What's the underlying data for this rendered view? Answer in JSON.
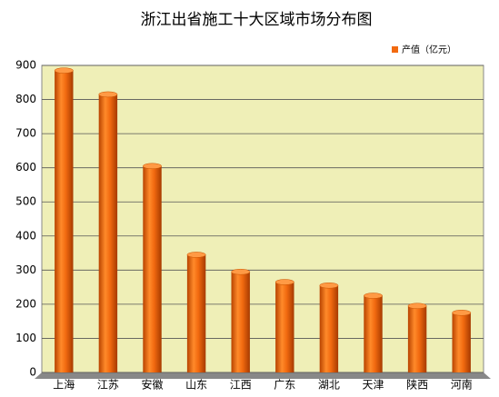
{
  "chart_data": {
    "type": "bar",
    "title": "浙江出省施工十大区域市场分布图",
    "categories": [
      "上海",
      "江苏",
      "安徽",
      "山东",
      "江西",
      "广东",
      "湖北",
      "天津",
      "陕西",
      "河南"
    ],
    "series": [
      {
        "name": "产值（亿元）",
        "color": "#f26a10",
        "values": [
          885,
          815,
          605,
          345,
          295,
          265,
          255,
          225,
          195,
          175
        ]
      }
    ],
    "ylim": [
      0,
      900
    ],
    "yticks": [
      0,
      100,
      200,
      300,
      400,
      500,
      600,
      700,
      800,
      900
    ],
    "grid": true,
    "legend": "top-right"
  }
}
